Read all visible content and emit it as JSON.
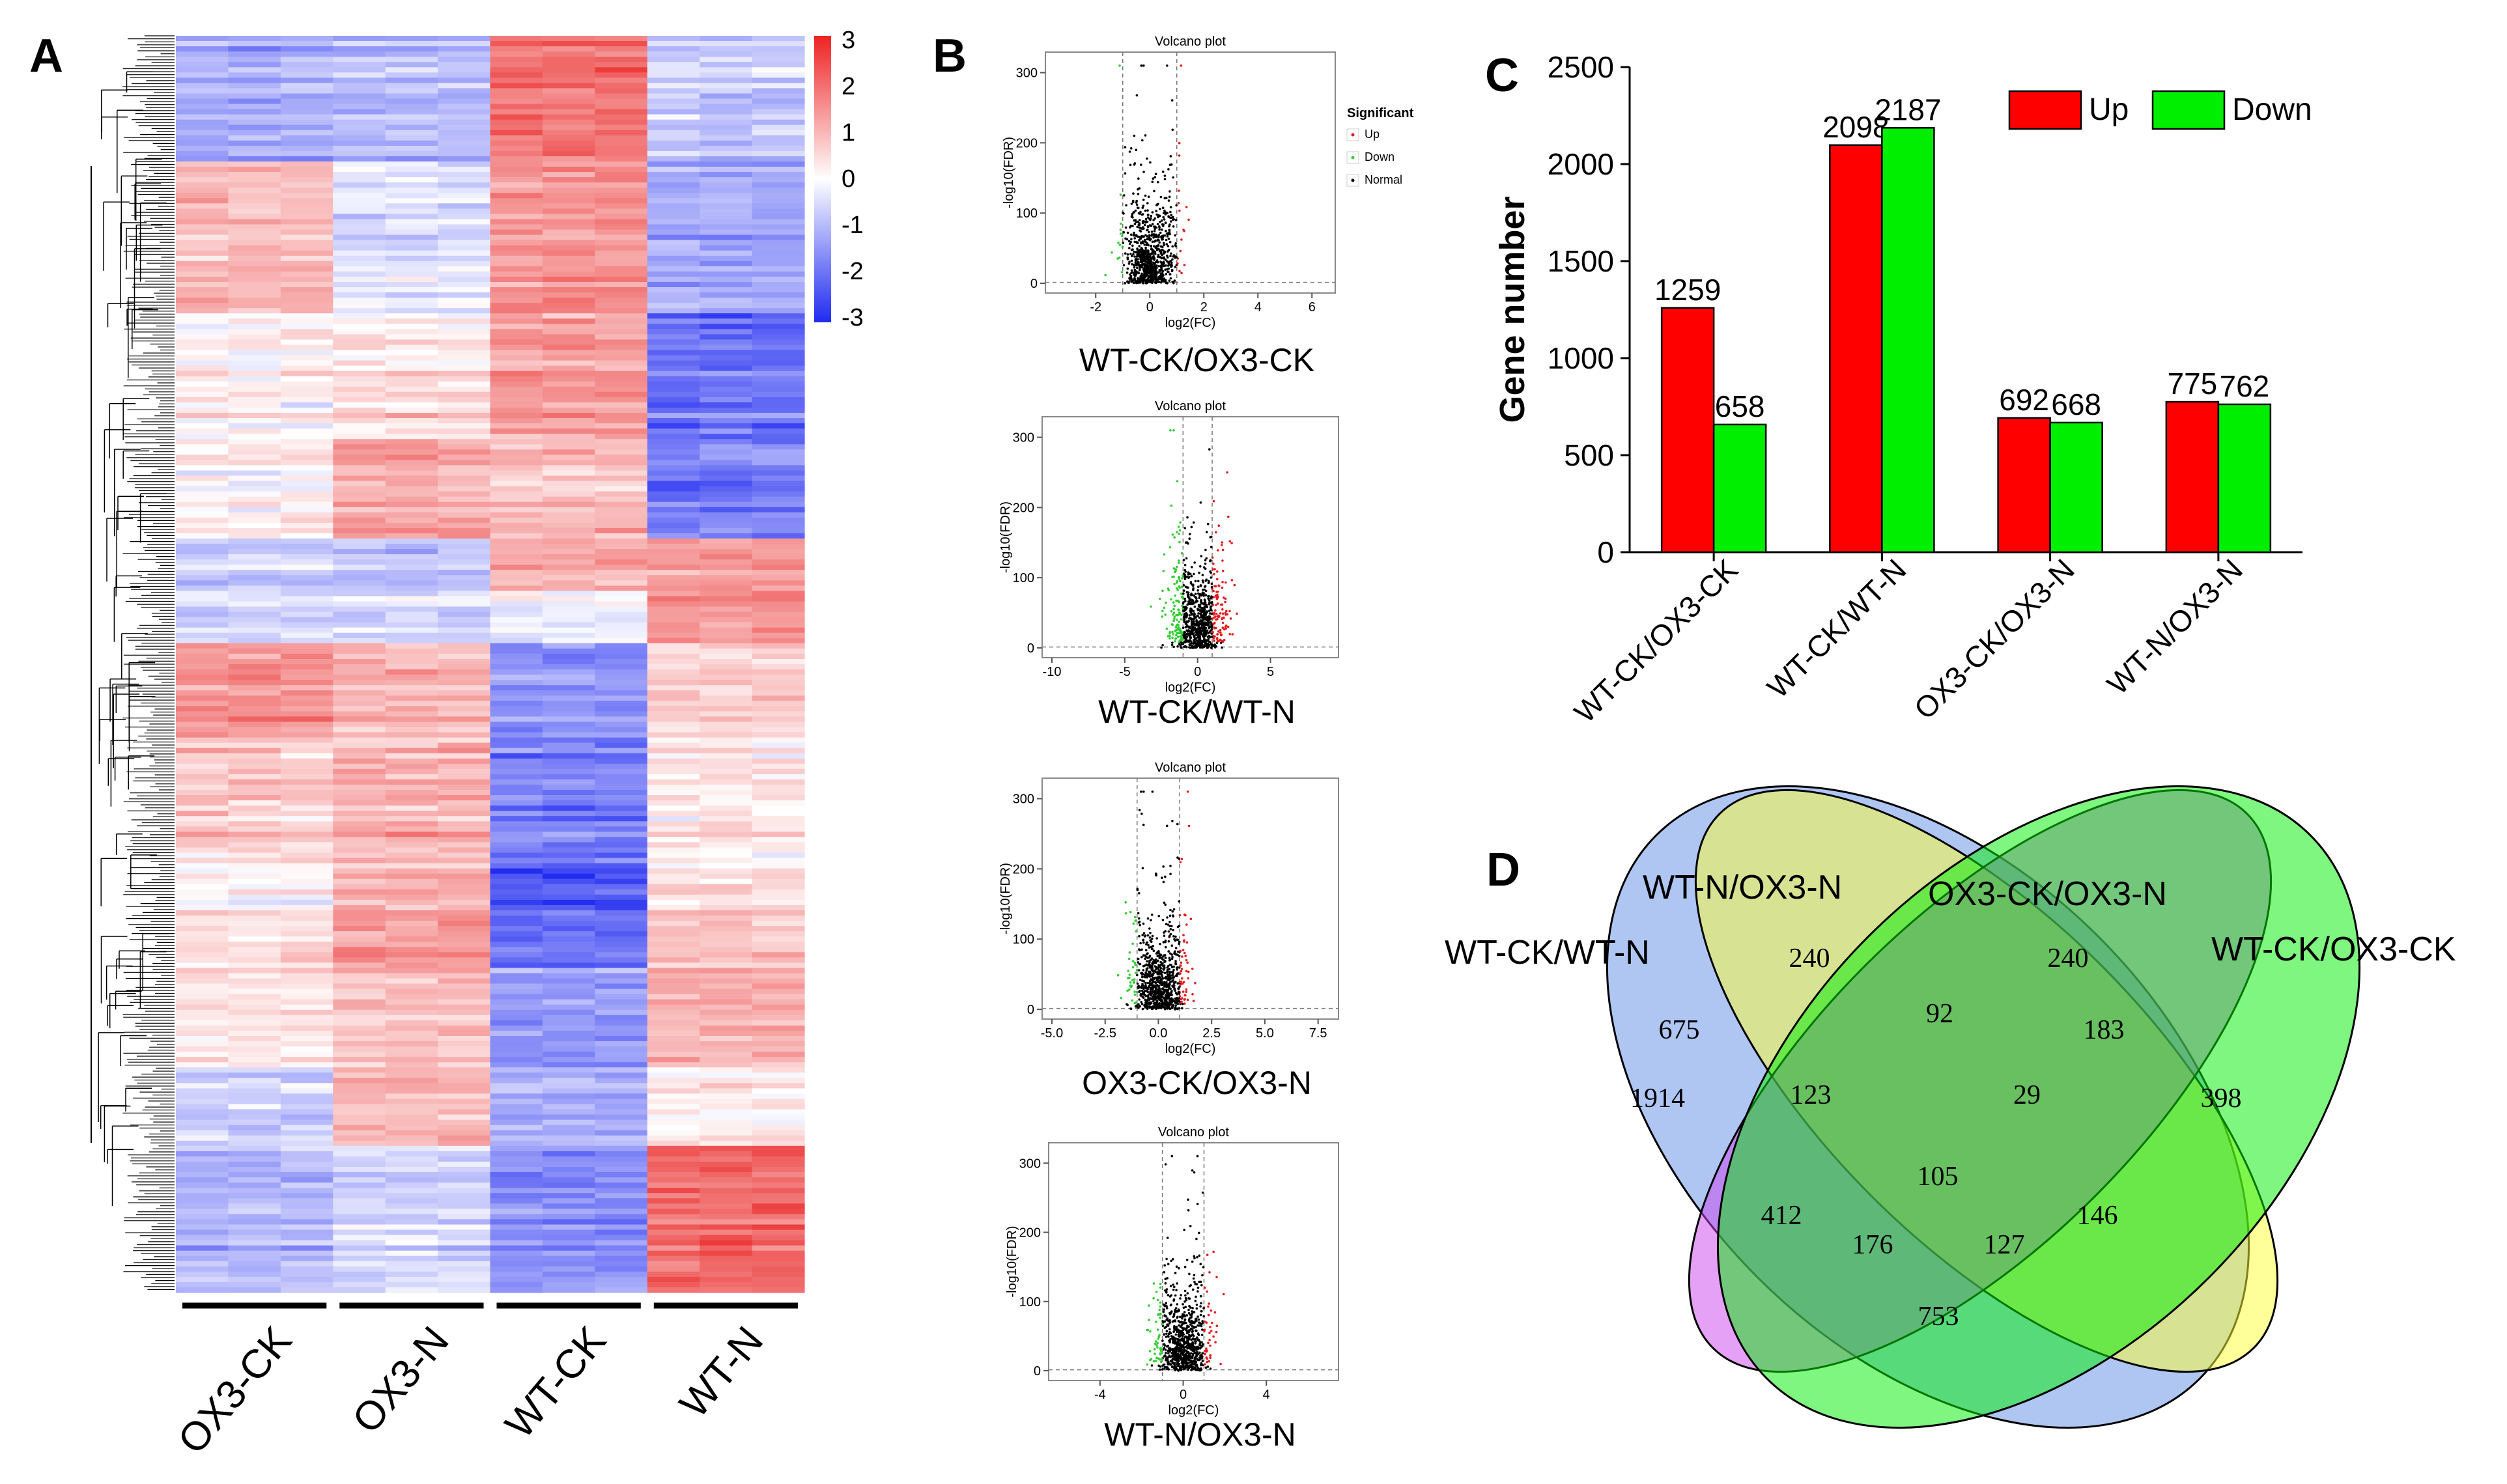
{
  "panel_labels": {
    "a": "A",
    "b": "B",
    "c": "C",
    "d": "D"
  },
  "colors": {
    "heat_high": "#ee2b2b",
    "heat_mid": "#ffffff",
    "heat_low": "#1f2bf0",
    "up": "#ff0000",
    "down": "#00ee00",
    "volcano_up": "#e31a1c",
    "volcano_down": "#33cc33",
    "volcano_normal": "#000000"
  },
  "heatmap": {
    "scale_ticks": [
      "3",
      "2",
      "1",
      "0",
      "-1",
      "-2",
      "-3"
    ],
    "groups": [
      "OX3-CK",
      "OX3-N",
      "WT-CK",
      "WT-N"
    ]
  },
  "volcano": {
    "plot_title": "Volcano plot",
    "ylabel": "-log10(FDR)",
    "xlabel": "log2(FC)",
    "legend_title": "Significant",
    "legend_items": [
      "Up",
      "Down",
      "Normal"
    ],
    "plots": [
      {
        "caption": "WT-CK/OX3-CK",
        "xticks": [
          "-2",
          "0",
          "2",
          "4",
          "6"
        ],
        "xmin": -3.5,
        "xmax": 6.5,
        "yticks": [
          "0",
          "100",
          "200",
          "300"
        ]
      },
      {
        "caption": "WT-CK/WT-N",
        "xticks": [
          "-10",
          "-5",
          "0",
          "5"
        ],
        "xmin": -10,
        "xmax": 9,
        "yticks": [
          "0",
          "100",
          "200",
          "300"
        ]
      },
      {
        "caption": "OX3-CK/OX3-N",
        "xticks": [
          "-5.0",
          "-2.5",
          "0.0",
          "2.5",
          "5.0",
          "7.5"
        ],
        "xmin": -5,
        "xmax": 8,
        "yticks": [
          "0",
          "100",
          "200",
          "300"
        ]
      },
      {
        "caption": "WT-N/OX3-N",
        "xticks": [
          "-4",
          "0",
          "4"
        ],
        "xmin": -6,
        "xmax": 7,
        "yticks": [
          "0",
          "100",
          "200",
          "300"
        ]
      }
    ]
  },
  "chart_data": [
    {
      "type": "bar",
      "title": "",
      "xlabel": "",
      "ylabel": "Gene number",
      "ylim": [
        0,
        2500
      ],
      "yticks": [
        "0",
        "500",
        "1000",
        "1500",
        "2000",
        "2500"
      ],
      "categories": [
        "WT-CK/OX3-CK",
        "WT-CK/WT-N",
        "OX3-CK/OX3-N",
        "WT-N/OX3-N"
      ],
      "series": [
        {
          "name": "Up",
          "values": [
            1259,
            2098,
            692,
            775
          ],
          "labels": [
            "1259",
            "2098",
            "692",
            "775"
          ]
        },
        {
          "name": "Down",
          "values": [
            658,
            2187,
            668,
            762
          ],
          "labels": [
            "658",
            "2187",
            "668",
            "762"
          ]
        }
      ],
      "legend": "top-right"
    }
  ],
  "venn": {
    "sets": [
      "WT-CK/WT-N",
      "WT-N/OX3-N",
      "OX3-CK/OX3-N",
      "WT-CK/OX3-CK"
    ],
    "regions": [
      "1914",
      "240",
      "240",
      "398",
      "675",
      "92",
      "183",
      "123",
      "29",
      "105",
      "412",
      "146",
      "176",
      "127",
      "753"
    ]
  }
}
